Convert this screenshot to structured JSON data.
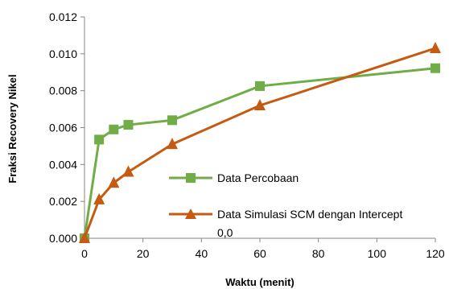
{
  "chart_data": {
    "type": "line",
    "xlabel": "Waktu (menit)",
    "ylabel": "Fraksi Recovery Nikel",
    "xlim": [
      0,
      120
    ],
    "ylim": [
      0,
      0.012
    ],
    "x_ticks": [
      "0",
      "20",
      "40",
      "60",
      "80",
      "100",
      "120"
    ],
    "y_ticks": [
      "0.000",
      "0.002",
      "0.004",
      "0.006",
      "0.008",
      "0.010",
      "0.012"
    ],
    "grid": false,
    "legend_position": "inside-bottom-right",
    "series": [
      {
        "name": "Data Percobaan",
        "marker": "square",
        "color": "#70ad47",
        "points": [
          {
            "x": 0,
            "y": 0.0
          },
          {
            "x": 5,
            "y": 0.00535
          },
          {
            "x": 10,
            "y": 0.0059
          },
          {
            "x": 15,
            "y": 0.00615
          },
          {
            "x": 30,
            "y": 0.0064
          },
          {
            "x": 60,
            "y": 0.00825
          },
          {
            "x": 120,
            "y": 0.00922
          }
        ]
      },
      {
        "name": "Data Simulasi SCM dengan Intercept",
        "name_line2": "0,0",
        "marker": "triangle",
        "color": "#c55a11",
        "points": [
          {
            "x": 0,
            "y": 0.0
          },
          {
            "x": 5,
            "y": 0.0021
          },
          {
            "x": 10,
            "y": 0.003
          },
          {
            "x": 15,
            "y": 0.0036
          },
          {
            "x": 30,
            "y": 0.0051
          },
          {
            "x": 60,
            "y": 0.0072
          },
          {
            "x": 120,
            "y": 0.0103
          }
        ]
      }
    ]
  }
}
